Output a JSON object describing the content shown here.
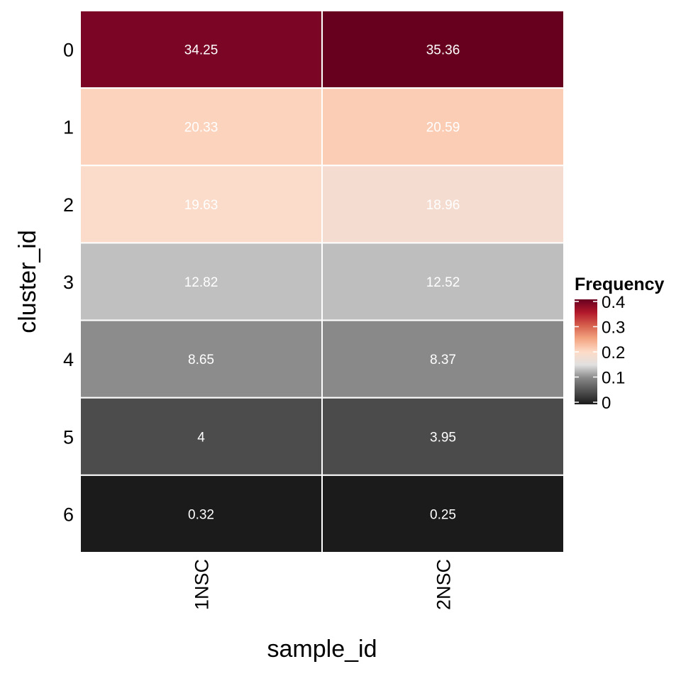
{
  "chart_data": {
    "type": "heatmap",
    "xlabel": "sample_id",
    "ylabel": "cluster_id",
    "x_categories": [
      "1NSC",
      "2NSC"
    ],
    "y_categories": [
      "0",
      "1",
      "2",
      "3",
      "4",
      "5",
      "6"
    ],
    "values": [
      [
        34.25,
        35.36
      ],
      [
        20.33,
        20.59
      ],
      [
        19.63,
        18.96
      ],
      [
        12.82,
        12.52
      ],
      [
        8.65,
        8.37
      ],
      [
        4,
        3.95
      ],
      [
        0.32,
        0.25
      ]
    ],
    "cell_labels": [
      [
        "34.25",
        "35.36"
      ],
      [
        "20.33",
        "20.59"
      ],
      [
        "19.63",
        "18.96"
      ],
      [
        "12.82",
        "12.52"
      ],
      [
        "8.65",
        "8.37"
      ],
      [
        "4",
        "3.95"
      ],
      [
        "0.32",
        "0.25"
      ]
    ],
    "legend": {
      "title": "Frequency",
      "ticks": [
        0,
        0.1,
        0.2,
        0.3,
        0.4
      ],
      "tick_labels": [
        "0",
        "0.1",
        "0.2",
        "0.3",
        "0.4"
      ],
      "placement": "right",
      "range": [
        0,
        0.4
      ]
    },
    "colorscale": [
      {
        "value": 0.0,
        "color": "#1a1a1a"
      },
      {
        "value": 0.1,
        "color": "#878787"
      },
      {
        "value": 0.15,
        "color": "#e0e0e0"
      },
      {
        "value": 0.2,
        "color": "#fddbc7"
      },
      {
        "value": 0.25,
        "color": "#f4a582"
      },
      {
        "value": 0.3,
        "color": "#d6604d"
      },
      {
        "value": 0.35,
        "color": "#b2182b"
      },
      {
        "value": 0.4,
        "color": "#67001f"
      }
    ],
    "cell_colors": [
      [
        "#7a0525",
        "#67001f"
      ],
      [
        "#fcd4be",
        "#fccdb5"
      ],
      [
        "#fbdbc9",
        "#f5dcd0"
      ],
      [
        "#c0c0c0",
        "#bebebe"
      ],
      [
        "#8c8c8c",
        "#898989"
      ],
      [
        "#4c4c4c",
        "#4b4b4b"
      ],
      [
        "#1b1b1b",
        "#1b1b1b"
      ]
    ],
    "grid": false
  }
}
